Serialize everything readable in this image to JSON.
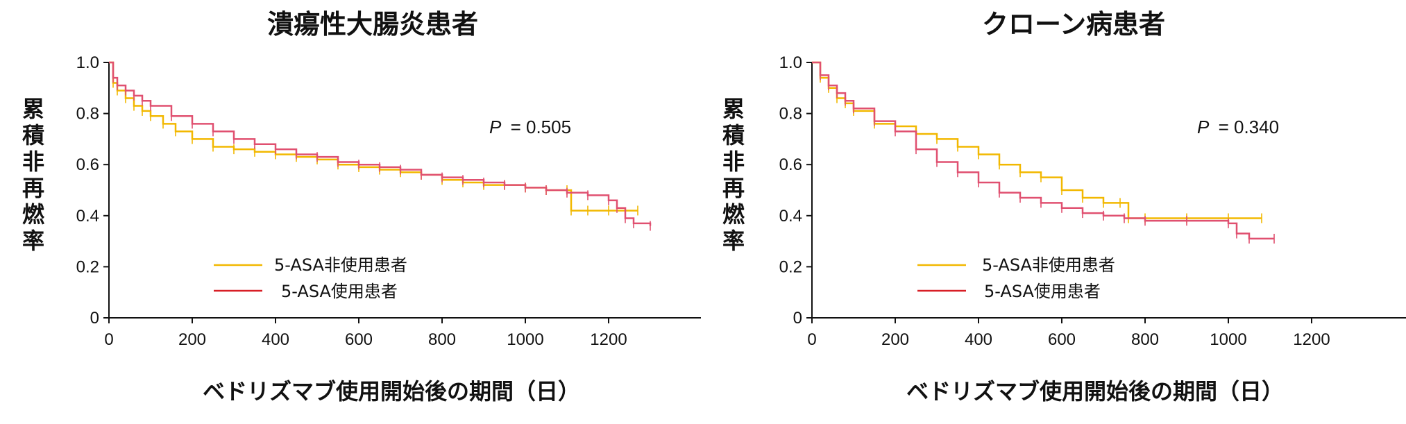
{
  "chart_data": [
    {
      "type": "line",
      "title": "潰瘍性大腸炎患者",
      "xlabel": "ベドリズマブ使用開始後の期間（日）",
      "ylabel": "累積非再燃率",
      "x_ticks": [
        "0",
        "200",
        "400",
        "600",
        "800",
        "1000",
        "1200"
      ],
      "y_ticks": [
        "0",
        "0.2",
        "0.4",
        "0.6",
        "0.8",
        "1.0"
      ],
      "xlim": [
        0,
        1430
      ],
      "ylim": [
        0,
        1.0
      ],
      "p_label": "P",
      "p_value": "= 0.505",
      "series": [
        {
          "name": "5-ASA非使用患者",
          "color": "#F2B800",
          "x": [
            0,
            10,
            20,
            40,
            60,
            80,
            100,
            130,
            160,
            200,
            250,
            300,
            350,
            400,
            450,
            500,
            550,
            600,
            650,
            700,
            750,
            800,
            850,
            900,
            950,
            1000,
            1050,
            1100,
            1110,
            1150,
            1200,
            1270
          ],
          "y": [
            1.0,
            0.92,
            0.89,
            0.86,
            0.83,
            0.81,
            0.79,
            0.76,
            0.73,
            0.7,
            0.67,
            0.66,
            0.65,
            0.64,
            0.63,
            0.62,
            0.6,
            0.59,
            0.58,
            0.57,
            0.56,
            0.54,
            0.53,
            0.52,
            0.52,
            0.51,
            0.5,
            0.5,
            0.42,
            0.42,
            0.42,
            0.42
          ]
        },
        {
          "name": "5-ASA使用患者",
          "color": "#E05070",
          "x": [
            0,
            10,
            20,
            40,
            60,
            80,
            100,
            150,
            200,
            250,
            300,
            350,
            400,
            450,
            500,
            550,
            600,
            650,
            700,
            750,
            800,
            850,
            900,
            950,
            1000,
            1050,
            1100,
            1150,
            1200,
            1220,
            1240,
            1260,
            1300
          ],
          "y": [
            1.0,
            0.94,
            0.91,
            0.89,
            0.87,
            0.85,
            0.83,
            0.79,
            0.76,
            0.73,
            0.7,
            0.68,
            0.66,
            0.64,
            0.63,
            0.61,
            0.6,
            0.59,
            0.58,
            0.56,
            0.55,
            0.54,
            0.53,
            0.52,
            0.51,
            0.5,
            0.49,
            0.48,
            0.46,
            0.43,
            0.39,
            0.37,
            0.36
          ]
        }
      ]
    },
    {
      "type": "line",
      "title": "クローン病患者",
      "xlabel": "ベドリズマブ使用開始後の期間（日）",
      "ylabel": "累積非再燃率",
      "x_ticks": [
        "0",
        "200",
        "400",
        "600",
        "800",
        "1000",
        "1200"
      ],
      "y_ticks": [
        "0",
        "0.2",
        "0.4",
        "0.6",
        "0.8",
        "1.0"
      ],
      "xlim": [
        0,
        1430
      ],
      "ylim": [
        0,
        1.0
      ],
      "p_label": "P",
      "p_value": "= 0.340",
      "series": [
        {
          "name": "5-ASA非使用患者",
          "color": "#F2B800",
          "x": [
            0,
            20,
            40,
            60,
            80,
            100,
            150,
            200,
            250,
            300,
            350,
            400,
            450,
            500,
            550,
            600,
            650,
            700,
            740,
            760,
            800,
            900,
            1000,
            1080
          ],
          "y": [
            1.0,
            0.94,
            0.9,
            0.86,
            0.84,
            0.81,
            0.76,
            0.75,
            0.72,
            0.7,
            0.67,
            0.64,
            0.6,
            0.57,
            0.55,
            0.5,
            0.47,
            0.45,
            0.45,
            0.39,
            0.39,
            0.39,
            0.39,
            0.39
          ]
        },
        {
          "name": "5-ASA使用患者",
          "color": "#E05070",
          "x": [
            0,
            20,
            40,
            60,
            80,
            100,
            150,
            200,
            250,
            300,
            350,
            400,
            450,
            500,
            550,
            600,
            650,
            700,
            750,
            800,
            900,
            1000,
            1020,
            1050,
            1110
          ],
          "y": [
            1.0,
            0.95,
            0.91,
            0.88,
            0.85,
            0.82,
            0.77,
            0.73,
            0.66,
            0.61,
            0.57,
            0.53,
            0.49,
            0.47,
            0.45,
            0.43,
            0.41,
            0.4,
            0.39,
            0.38,
            0.38,
            0.37,
            0.33,
            0.31,
            0.31
          ]
        }
      ]
    }
  ]
}
